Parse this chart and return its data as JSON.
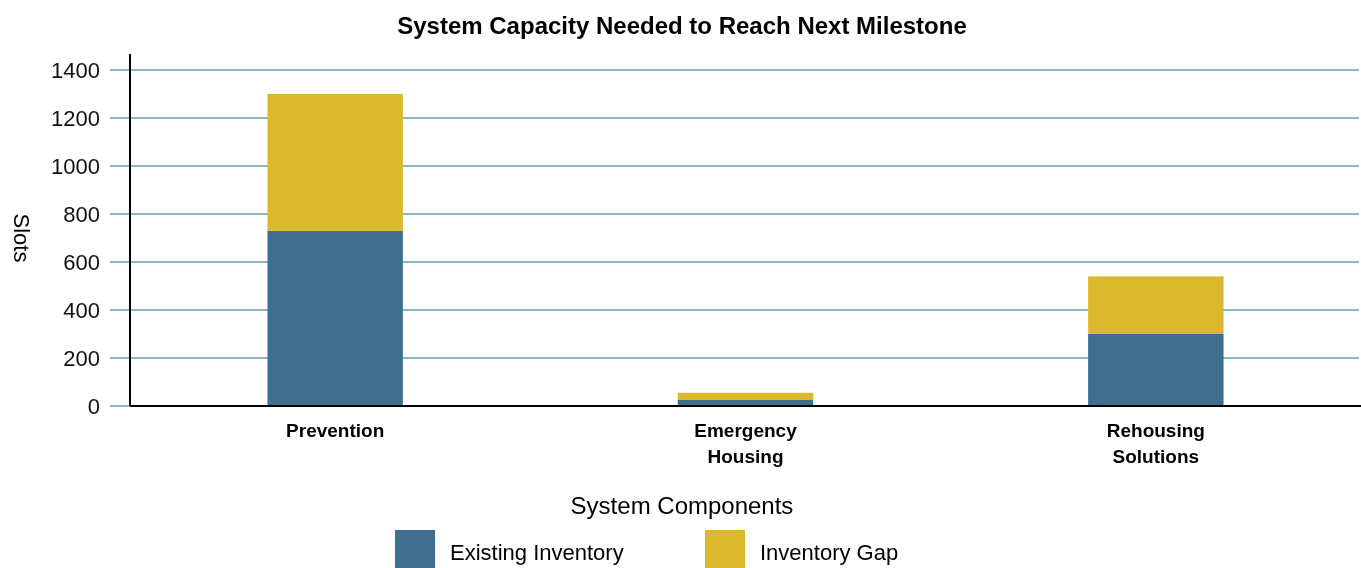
{
  "chart_data": {
    "type": "bar",
    "title": "System Capacity Needed to Reach Next Milestone",
    "ylabel": "Slots",
    "legend_title": "System Components",
    "categories": [
      "Prevention",
      "Emergency Housing",
      "Rehousing Solutions"
    ],
    "stacked": true,
    "series": [
      {
        "name": "Existing Inventory",
        "color": "#3e6f8e",
        "values": [
          730,
          25,
          300
        ]
      },
      {
        "name": "Inventory Gap",
        "color": "#dbb82c",
        "values": [
          570,
          30,
          240
        ]
      }
    ],
    "ylim": [
      0,
      1400
    ],
    "yticks": [
      0,
      200,
      400,
      600,
      800,
      1000,
      1200,
      1400
    ],
    "grid": "y",
    "legend": "bottom"
  }
}
